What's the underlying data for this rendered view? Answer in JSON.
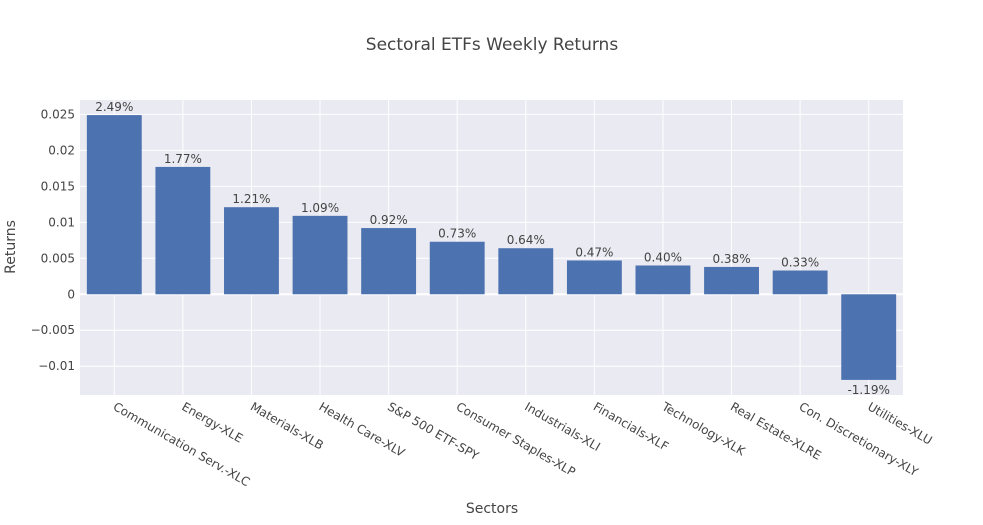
{
  "chart_data": {
    "type": "bar",
    "title": "Sectoral ETFs Weekly Returns",
    "xlabel": "Sectors",
    "ylabel": "Returns",
    "ylim": [
      -0.014,
      0.027
    ],
    "yticks": [
      {
        "value": 0.025,
        "label": "0.025"
      },
      {
        "value": 0.02,
        "label": "0.02"
      },
      {
        "value": 0.015,
        "label": "0.015"
      },
      {
        "value": 0.01,
        "label": "0.01"
      },
      {
        "value": 0.005,
        "label": "0.005"
      },
      {
        "value": 0,
        "label": "0"
      },
      {
        "value": -0.005,
        "label": "−0.005"
      },
      {
        "value": -0.01,
        "label": "−0.01"
      }
    ],
    "categories": [
      "Communication Serv.-XLC",
      "Energy-XLE",
      "Materials-XLB",
      "Health Care-XLV",
      "S&P 500 ETF-SPY",
      "Consumer Staples-XLP",
      "Industrials-XLI",
      "Financials-XLF",
      "Technology-XLK",
      "Real Estate-XLRE",
      "Con. Discretionary-XLY",
      "Utilities-XLU"
    ],
    "values": [
      0.0249,
      0.0177,
      0.0121,
      0.0109,
      0.0092,
      0.0073,
      0.0064,
      0.0047,
      0.004,
      0.0038,
      0.0033,
      -0.0119
    ],
    "labels": [
      "2.49%",
      "1.77%",
      "1.21%",
      "1.09%",
      "0.92%",
      "0.73%",
      "0.64%",
      "0.47%",
      "0.40%",
      "0.38%",
      "0.33%",
      "-1.19%"
    ],
    "bar_color": "#4c72b0",
    "plot_background": "#eaeaf2",
    "grid": true,
    "legend": "none"
  }
}
